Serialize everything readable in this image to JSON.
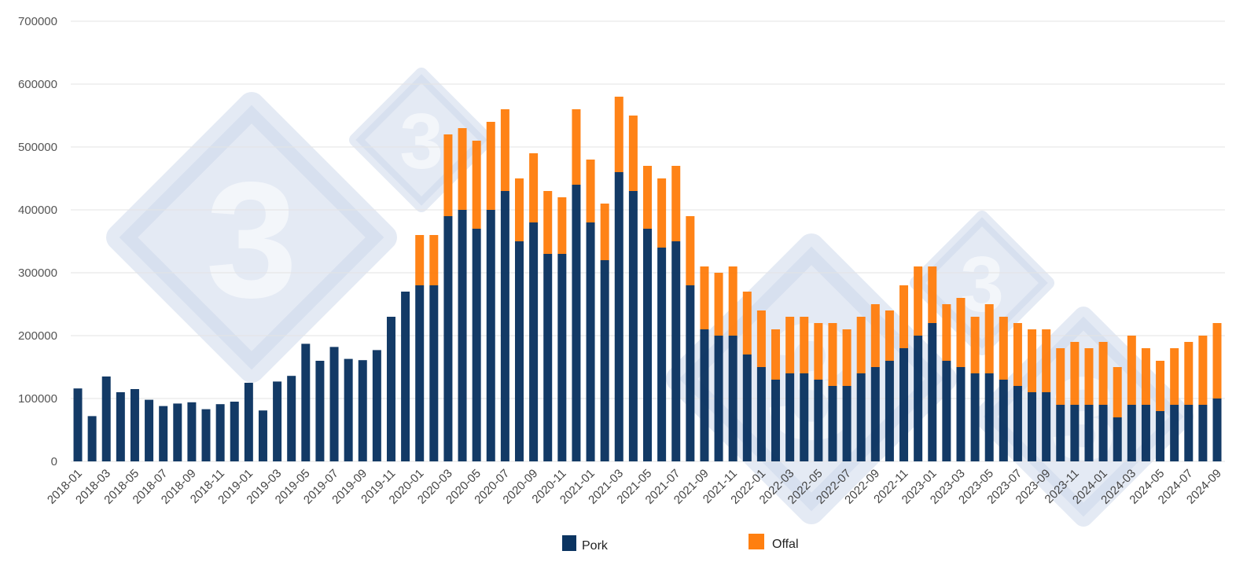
{
  "colors": {
    "pork": "#0b3461",
    "offal": "#ff7f10",
    "grid": "#e3e3e3",
    "watermark": "#c9d6ea"
  },
  "logo_text": "3",
  "chart_data": {
    "type": "bar",
    "stacked": true,
    "title": "",
    "xlabel": "",
    "ylabel": "",
    "ylim": [
      0,
      700000
    ],
    "yticks": [
      0,
      100000,
      200000,
      300000,
      400000,
      500000,
      600000,
      700000
    ],
    "ytick_labels": [
      "0",
      "100000",
      "200000",
      "300000",
      "400000",
      "500000",
      "600000",
      "700000"
    ],
    "grid": true,
    "legend_position": "bottom",
    "categories": [
      "2018-01",
      "2018-02",
      "2018-03",
      "2018-04",
      "2018-05",
      "2018-06",
      "2018-07",
      "2018-08",
      "2018-09",
      "2018-10",
      "2018-11",
      "2018-12",
      "2019-01",
      "2019-02",
      "2019-03",
      "2019-04",
      "2019-05",
      "2019-06",
      "2019-07",
      "2019-08",
      "2019-09",
      "2019-10",
      "2019-11",
      "2019-12",
      "2020-01",
      "2020-02",
      "2020-03",
      "2020-04",
      "2020-05",
      "2020-06",
      "2020-07",
      "2020-08",
      "2020-09",
      "2020-10",
      "2020-11",
      "2020-12",
      "2021-01",
      "2021-02",
      "2021-03",
      "2021-04",
      "2021-05",
      "2021-06",
      "2021-07",
      "2021-08",
      "2021-09",
      "2021-10",
      "2021-11",
      "2021-12",
      "2022-01",
      "2022-02",
      "2022-03",
      "2022-04",
      "2022-05",
      "2022-06",
      "2022-07",
      "2022-08",
      "2022-09",
      "2022-10",
      "2022-11",
      "2022-12",
      "2023-01",
      "2023-02",
      "2023-03",
      "2023-04",
      "2023-05",
      "2023-06",
      "2023-07",
      "2023-08",
      "2023-09",
      "2023-10",
      "2023-11",
      "2023-12",
      "2024-01",
      "2024-02",
      "2024-03",
      "2024-04",
      "2024-05",
      "2024-06",
      "2024-07",
      "2024-08",
      "2024-09"
    ],
    "xtick_labels": [
      "2018-01",
      "2018-03",
      "2018-05",
      "2018-07",
      "2018-09",
      "2018-11",
      "2019-01",
      "2019-03",
      "2019-05",
      "2019-07",
      "2019-09",
      "2019-11",
      "2020-01",
      "2020-03",
      "2020-05",
      "2020-07",
      "2020-09",
      "2020-11",
      "2021-01",
      "2021-03",
      "2021-05",
      "2021-07",
      "2021-09",
      "2021-11",
      "2022-01",
      "2022-03",
      "2022-05",
      "2022-07",
      "2022-09",
      "2022-11",
      "2023-01",
      "2023-03",
      "2023-05",
      "2023-07",
      "2023-09",
      "2023-11",
      "2024-01",
      "2024-03",
      "2024-05",
      "2024-07",
      "2024-09"
    ],
    "series": [
      {
        "name": "Pork",
        "color": "#0b3461",
        "values": [
          116000,
          72000,
          135000,
          110000,
          115000,
          98000,
          88000,
          92000,
          94000,
          83000,
          91000,
          95000,
          125000,
          81000,
          127000,
          136000,
          187000,
          160000,
          182000,
          163000,
          161000,
          177000,
          230000,
          270000,
          280000,
          280000,
          390000,
          400000,
          370000,
          400000,
          430000,
          350000,
          380000,
          330000,
          330000,
          440000,
          380000,
          320000,
          460000,
          430000,
          370000,
          340000,
          350000,
          280000,
          210000,
          200000,
          200000,
          170000,
          150000,
          130000,
          140000,
          140000,
          130000,
          120000,
          120000,
          140000,
          150000,
          160000,
          180000,
          200000,
          220000,
          160000,
          150000,
          140000,
          140000,
          130000,
          120000,
          110000,
          110000,
          90000,
          90000,
          90000,
          90000,
          70000,
          90000,
          90000,
          80000,
          90000,
          90000,
          90000,
          100000
        ]
      },
      {
        "name": "Offal",
        "color": "#ff7f10",
        "values": [
          0,
          0,
          0,
          0,
          0,
          0,
          0,
          0,
          0,
          0,
          0,
          0,
          0,
          0,
          0,
          0,
          0,
          0,
          0,
          0,
          0,
          0,
          0,
          0,
          80000,
          80000,
          130000,
          130000,
          140000,
          140000,
          130000,
          100000,
          110000,
          100000,
          90000,
          120000,
          100000,
          90000,
          120000,
          120000,
          100000,
          110000,
          120000,
          110000,
          100000,
          100000,
          110000,
          100000,
          90000,
          80000,
          90000,
          90000,
          90000,
          100000,
          90000,
          90000,
          100000,
          80000,
          100000,
          110000,
          90000,
          90000,
          110000,
          90000,
          110000,
          100000,
          100000,
          100000,
          100000,
          90000,
          100000,
          90000,
          100000,
          80000,
          110000,
          90000,
          80000,
          90000,
          100000,
          110000,
          120000
        ]
      }
    ]
  }
}
